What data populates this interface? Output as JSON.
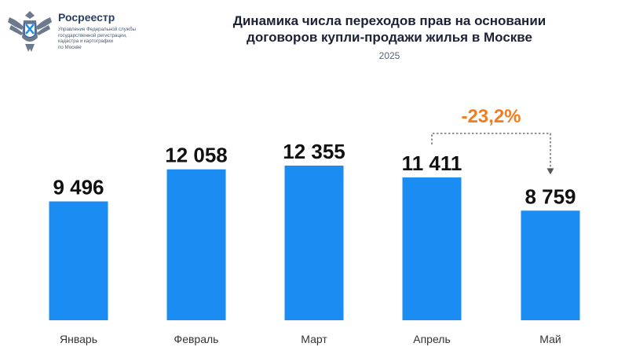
{
  "header": {
    "org_name": "Росреестр",
    "org_sub_lines": [
      "Управление Федеральной службы",
      "государственной регистрации,",
      "кадастра и картографии",
      "по Москве"
    ],
    "title_lines": [
      "Динамика числа переходов прав на основании",
      "договоров купли-продажи жилья в Москве"
    ],
    "subtitle": "2025"
  },
  "colors": {
    "bar": "#1a8cf2",
    "change": "#f07d1f",
    "label": "#111111",
    "category": "#333333"
  },
  "chart_data": {
    "type": "bar",
    "title": "Динамика числа переходов прав на основании договоров купли-продажи жилья в Москве",
    "subtitle": "2025",
    "categories": [
      "Январь",
      "Февраль",
      "Март",
      "Апрель",
      "Май"
    ],
    "values": [
      9496,
      12058,
      12355,
      11411,
      8759
    ],
    "value_labels": [
      "9 496",
      "12 058",
      "12 355",
      "11 411",
      "8 759"
    ],
    "ylim": [
      0,
      12355
    ],
    "grid": false,
    "annotation": {
      "text": "-23,2%",
      "from": "Апрель",
      "to": "Май"
    }
  }
}
